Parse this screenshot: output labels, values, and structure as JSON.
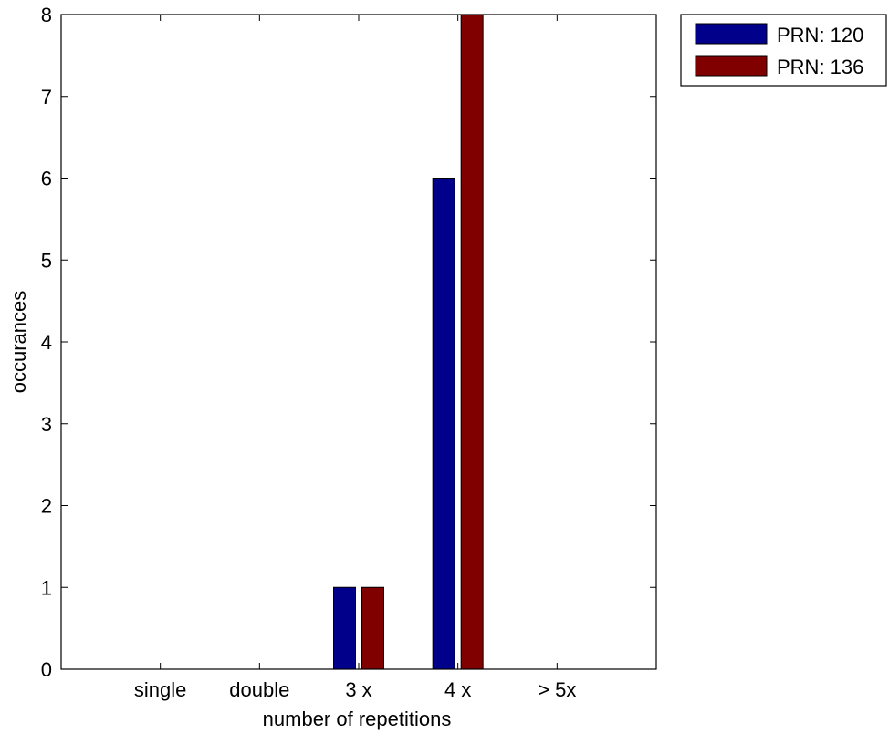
{
  "chart_data": {
    "type": "bar",
    "title": "",
    "xlabel": "number of repetitions",
    "ylabel": "occurances",
    "categories": [
      "single",
      "double",
      "3 x",
      "4 x",
      "> 5x"
    ],
    "ylim": [
      0,
      8
    ],
    "yticks": [
      "0",
      "1",
      "2",
      "3",
      "4",
      "5",
      "6",
      "7",
      "8"
    ],
    "grid": false,
    "legend_position": "outside-top-right",
    "series": [
      {
        "name": "PRN: 120",
        "color": "#00008b",
        "values": [
          0,
          0,
          1,
          6,
          0
        ]
      },
      {
        "name": "PRN: 136",
        "color": "#800000",
        "values": [
          0,
          0,
          1,
          8,
          0
        ]
      }
    ]
  }
}
